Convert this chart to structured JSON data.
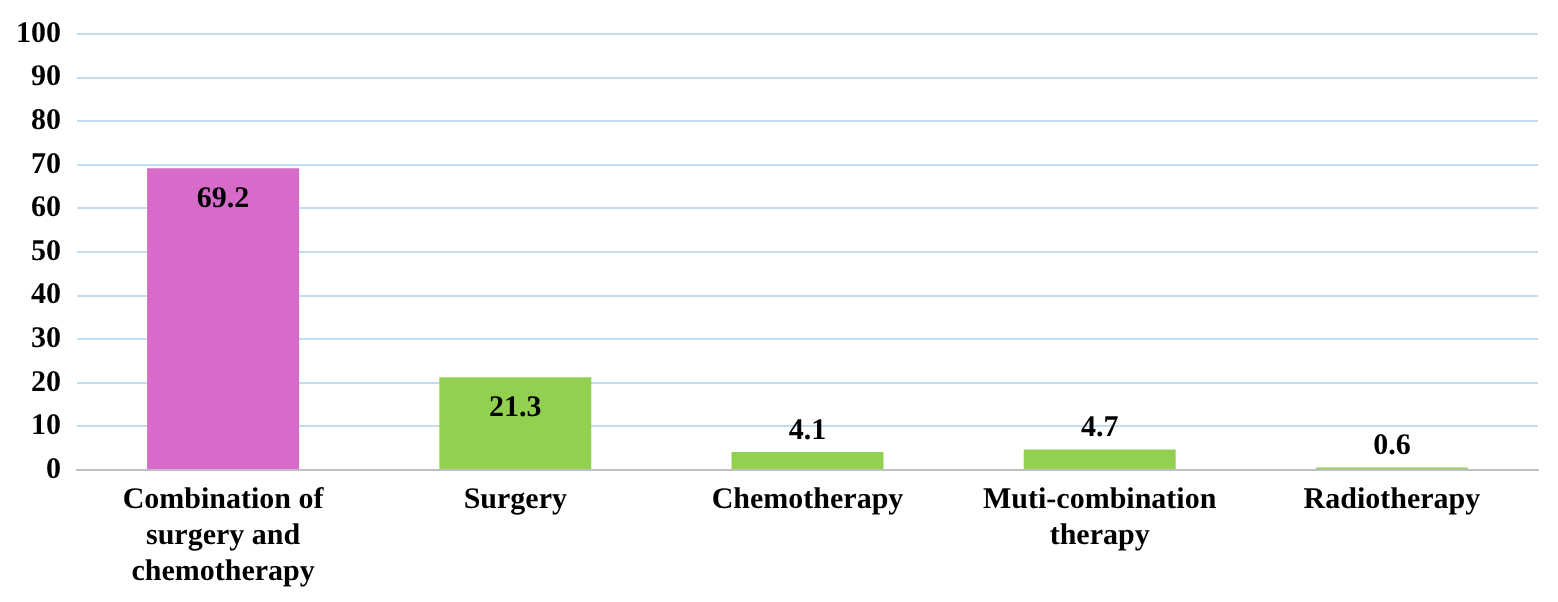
{
  "chart_data": {
    "type": "bar",
    "categories": [
      "Combination of surgery and chemotherapy",
      "Surgery",
      "Chemotherapy",
      "Muti-combination therapy",
      "Radiotherapy"
    ],
    "values": [
      69.2,
      21.3,
      4.1,
      4.7,
      0.6
    ],
    "colors": [
      "#d66bc9",
      "#92d050",
      "#92d050",
      "#92d050",
      "#92d050"
    ],
    "ylim": [
      0,
      100
    ],
    "yticks": [
      0,
      10,
      20,
      30,
      40,
      50,
      60,
      70,
      80,
      90,
      100
    ],
    "grid": "y",
    "legend": false,
    "data_labels": true
  }
}
